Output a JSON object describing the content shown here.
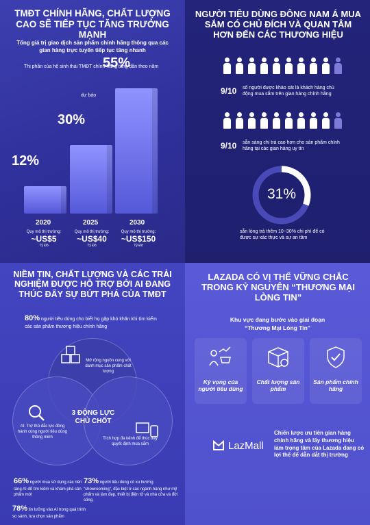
{
  "q1": {
    "title": "TMĐT CHÍNH HÃNG, CHẤT LƯỢNG CAO SẼ TIẾP TỤC TĂNG TRƯỞNG MẠNH",
    "subtitle": "Tổng giá trị giao dịch sản phẩm chính hãng thông qua các gian hàng trực tuyến tiếp tục tăng nhanh",
    "note": "Thị phần của hệ sinh thái TMĐT chính hãng tăng dần theo năm"
  },
  "chart_data": {
    "type": "bar",
    "categories": [
      "2020",
      "2025",
      "2030"
    ],
    "values": [
      12,
      30,
      55
    ],
    "value_labels": [
      "12%",
      "30%",
      "55%"
    ],
    "forecast_label": "dự báo",
    "market_label": "Quy mô thị trường:",
    "market_values": [
      "~US$5",
      "~US$40",
      "~US$150"
    ],
    "market_unit": "Tỷ Đô",
    "ylim": [
      0,
      60
    ]
  },
  "q2": {
    "title": "NGƯỜI TIÊU DÙNG ĐÔNG NAM Á MUA SẮM CÓ CHỦ ĐÍCH VÀ QUAN TÂM HƠN ĐẾN CÁC THƯƠNG HIỆU",
    "stat1_value": "9/10",
    "stat1_text": "số người được khảo sát là khách hàng chủ động mua sắm trên gian hàng chính hãng",
    "stat2_value": "9/10",
    "stat2_text": "sẵn sàng chi trả cao hơn cho sản phẩm chính hãng tại các gian hàng uy tín",
    "donut_value": "31%",
    "donut_fraction": 0.31,
    "donut_text": "sẵn lòng trả thêm 10~30% chi phí để có được sự xác thực và sự an tâm",
    "people_filled": 9,
    "people_total": 10
  },
  "q3": {
    "title": "NIỀM TIN, CHẤT LƯỢNG VÀ CÁC TRẢI NGHIỆM ĐƯỢC HỖ TRỢ BỞI AI ĐANG THÚC ĐẨY SỰ BỨT PHÁ CỦA TMĐT",
    "stat80_value": "80%",
    "stat80_text": "người tiêu dùng cho biết họ gặp khó khăn khi tìm kiếm các sản phẩm thương hiệu chính hãng",
    "venn_top": "Mở rộng nguồn cung với danh mục sản phẩm chất lượng",
    "venn_left": "AI: Trợ thủ đắc lực đồng hành cùng người tiêu dùng thông minh",
    "venn_right": "Tích hợp đa kênh để thúc đẩy quyết định mua sắm",
    "venn_center": "3 ĐỘNG LỰC CHỦ CHỐT",
    "stat66_value": "66%",
    "stat66_text": "người mua sử dụng các nền tảng AI để tìm kiếm và khám phá sản phẩm mới",
    "stat73_value": "73%",
    "stat73_text": "người tiêu dùng có xu hướng \"showrooming\", đặc biệt ở các ngành hàng như mỹ phẩm và làm đẹp, thiết bị điện tử và nhà cửa và đời sống.",
    "stat78_value": "78%",
    "stat78_text": "tin tưởng vào AI trong quá trình so sánh, lựa chọn sản phẩm"
  },
  "q4": {
    "title": "LAZADA CÓ VỊ THẾ VỮNG CHẮC TRONG KỶ NGUYÊN “THƯƠNG MẠI LÒNG TIN”",
    "subtitle_line1": "Khu vực đang bước vào giai đoạn",
    "subtitle_line2": "“Thương Mại Lòng Tin”",
    "cards": [
      "Kỳ vọng của người tiêu dùng",
      "Chất lượng sản phẩm",
      "Sản phẩm chính hãng"
    ],
    "logo_text": "LazMall",
    "strategy_text": "Chiến lược ưu tiên gian hàng chính hãng và lấy thương hiệu làm trọng tâm của Lazada đang có lợi thế để dẫn dắt thị trường"
  }
}
